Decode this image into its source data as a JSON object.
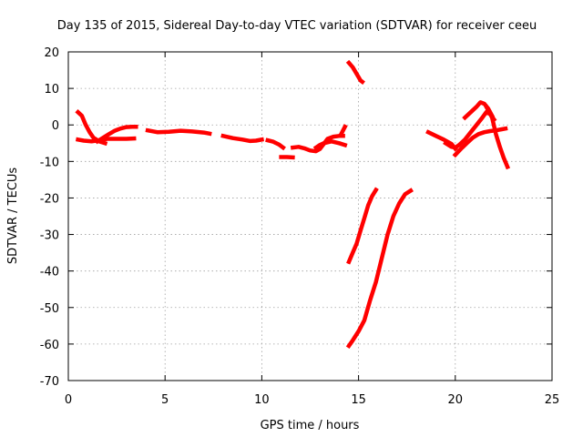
{
  "chart_data": {
    "type": "line",
    "title": "Day 135 of 2015, Sidereal Day-to-day VTEC variation (SDTVAR) for receiver ceeu",
    "xlabel": "GPS time / hours",
    "ylabel": "SDTVAR / TECUs",
    "xlim": [
      0,
      25
    ],
    "ylim": [
      -70,
      20
    ],
    "x_ticks": [
      "0",
      "5",
      "10",
      "15",
      "20",
      "25"
    ],
    "y_ticks": [
      "-70",
      "-60",
      "-50",
      "-40",
      "-30",
      "-20",
      "-10",
      "0",
      "10",
      "20"
    ],
    "grid": true,
    "legend": "none",
    "series_color": "#ff0000",
    "series": [
      {
        "points": [
          [
            0.5,
            3.5
          ],
          [
            0.7,
            2.5
          ],
          [
            0.9,
            0
          ],
          [
            1.1,
            -2
          ],
          [
            1.3,
            -3.5
          ],
          [
            1.6,
            -4.5
          ],
          [
            1.9,
            -5
          ]
        ]
      },
      {
        "points": [
          [
            0.5,
            -4
          ],
          [
            0.8,
            -4.3
          ],
          [
            1.2,
            -4.5
          ],
          [
            1.6,
            -4.2
          ],
          [
            2.0,
            -3.8
          ],
          [
            2.5,
            -3.8
          ],
          [
            3.0,
            -3.8
          ],
          [
            3.4,
            -3.7
          ]
        ]
      },
      {
        "points": [
          [
            1.5,
            -4.5
          ],
          [
            1.8,
            -3.5
          ],
          [
            2.1,
            -2.5
          ],
          [
            2.4,
            -1.6
          ],
          [
            2.7,
            -1
          ],
          [
            3.0,
            -0.6
          ],
          [
            3.3,
            -0.5
          ],
          [
            3.5,
            -0.5
          ]
        ]
      },
      {
        "points": [
          [
            4.1,
            -1.5
          ],
          [
            4.6,
            -2
          ],
          [
            5.2,
            -1.9
          ],
          [
            5.8,
            -1.6
          ],
          [
            6.4,
            -1.8
          ],
          [
            7.0,
            -2.1
          ],
          [
            7.3,
            -2.4
          ]
        ]
      },
      {
        "points": [
          [
            8.0,
            -3
          ],
          [
            8.5,
            -3.6
          ],
          [
            9.0,
            -4
          ],
          [
            9.4,
            -4.4
          ],
          [
            9.7,
            -4.3
          ],
          [
            10.0,
            -4
          ]
        ]
      },
      {
        "points": [
          [
            10.3,
            -4.2
          ],
          [
            10.6,
            -4.6
          ],
          [
            10.9,
            -5.4
          ],
          [
            11.1,
            -6.2
          ]
        ]
      },
      {
        "points": [
          [
            11.0,
            -8.8
          ],
          [
            11.3,
            -8.8
          ],
          [
            11.6,
            -8.9
          ]
        ]
      },
      {
        "points": [
          [
            11.6,
            -6.2
          ],
          [
            11.9,
            -6
          ],
          [
            12.2,
            -6.4
          ],
          [
            12.5,
            -7
          ],
          [
            12.8,
            -7.2
          ],
          [
            13.0,
            -6.6
          ],
          [
            13.2,
            -5.2
          ],
          [
            13.4,
            -3.8
          ],
          [
            13.7,
            -3.2
          ],
          [
            14.0,
            -3
          ],
          [
            14.2,
            -3
          ]
        ]
      },
      {
        "points": [
          [
            12.8,
            -6.2
          ],
          [
            13.0,
            -5.5
          ],
          [
            13.2,
            -5
          ],
          [
            13.6,
            -4.5
          ],
          [
            14.0,
            -5
          ],
          [
            14.3,
            -5.5
          ]
        ]
      },
      {
        "points": [
          [
            14.1,
            -2.5
          ],
          [
            14.3,
            -0.5
          ]
        ]
      },
      {
        "points": [
          [
            14.5,
            17
          ],
          [
            14.7,
            15.8
          ],
          [
            14.9,
            14
          ],
          [
            15.1,
            12.2
          ],
          [
            15.2,
            11.8
          ]
        ]
      },
      {
        "points": [
          [
            14.5,
            -37.5
          ],
          [
            14.7,
            -35
          ],
          [
            14.9,
            -32.5
          ],
          [
            15.1,
            -29
          ],
          [
            15.3,
            -25.5
          ],
          [
            15.5,
            -22
          ],
          [
            15.7,
            -19.5
          ],
          [
            15.9,
            -17.8
          ]
        ]
      },
      {
        "points": [
          [
            14.5,
            -60.5
          ],
          [
            14.7,
            -59
          ],
          [
            15.0,
            -56.5
          ],
          [
            15.3,
            -53.5
          ],
          [
            15.6,
            -48
          ],
          [
            15.9,
            -43
          ],
          [
            16.2,
            -36.5
          ],
          [
            16.5,
            -30
          ],
          [
            16.8,
            -25
          ],
          [
            17.1,
            -21.5
          ],
          [
            17.4,
            -19
          ],
          [
            17.7,
            -18
          ]
        ]
      },
      {
        "points": [
          [
            18.6,
            -2
          ],
          [
            19.0,
            -3
          ],
          [
            19.4,
            -4
          ],
          [
            19.8,
            -5.2
          ],
          [
            20.0,
            -6.5
          ]
        ]
      },
      {
        "points": [
          [
            19.5,
            -5
          ],
          [
            19.8,
            -6
          ],
          [
            20.0,
            -6.2
          ],
          [
            20.2,
            -5.5
          ],
          [
            20.5,
            -4
          ],
          [
            20.8,
            -2
          ],
          [
            21.1,
            0
          ],
          [
            21.4,
            2
          ],
          [
            21.6,
            3.5
          ],
          [
            21.8,
            3
          ],
          [
            22.0,
            1.5
          ]
        ]
      },
      {
        "points": [
          [
            20.0,
            -8.2
          ],
          [
            20.3,
            -6.5
          ],
          [
            20.6,
            -5
          ],
          [
            20.9,
            -3.5
          ],
          [
            21.2,
            -2.5
          ],
          [
            21.5,
            -2
          ],
          [
            21.8,
            -1.7
          ],
          [
            22.1,
            -1.5
          ],
          [
            22.4,
            -1.2
          ],
          [
            22.6,
            -1
          ]
        ]
      },
      {
        "points": [
          [
            20.5,
            2
          ],
          [
            20.8,
            3.5
          ],
          [
            21.1,
            5
          ],
          [
            21.3,
            6.2
          ],
          [
            21.5,
            5.8
          ],
          [
            21.7,
            4.5
          ],
          [
            21.9,
            2.5
          ]
        ]
      },
      {
        "points": [
          [
            21.6,
            5
          ],
          [
            21.9,
            2
          ],
          [
            22.1,
            -2.5
          ],
          [
            22.3,
            -6
          ],
          [
            22.5,
            -9
          ],
          [
            22.7,
            -11.5
          ]
        ]
      }
    ]
  }
}
